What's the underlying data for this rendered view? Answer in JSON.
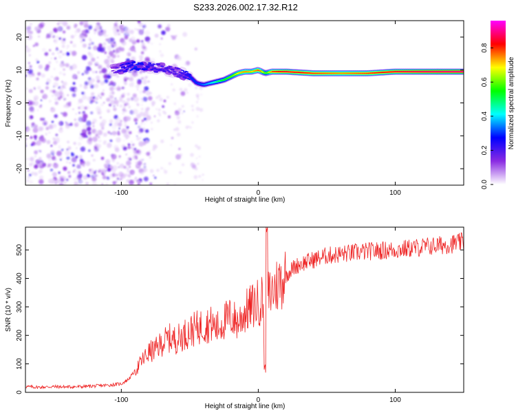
{
  "title": "S233.2026.002.17.32.R12",
  "chart_data": [
    {
      "type": "heatmap",
      "name": "spectrogram",
      "xlabel": "Height of straight line (km)",
      "ylabel": "Frequency (Hz)",
      "xlim": [
        -170,
        150
      ],
      "ylim": [
        -25,
        25
      ],
      "xticks": [
        -100,
        0,
        100
      ],
      "yticks": [
        -20,
        -10,
        0,
        10,
        20
      ],
      "grid": false,
      "colorbar": {
        "label": "Normalized spectral amplitude",
        "range": [
          0,
          0.96
        ],
        "ticks": [
          0.0,
          0.2,
          0.4,
          0.6,
          0.8
        ],
        "colors": [
          "#ffffff",
          "#8a2be2",
          "#0000ff",
          "#00ffff",
          "#00ff00",
          "#ffff00",
          "#ff0000",
          "#ff00ff"
        ]
      },
      "ridge": {
        "x": [
          -107,
          -100,
          -90,
          -80,
          -70,
          -60,
          -50,
          -45,
          -40,
          -35,
          -30,
          -25,
          -20,
          -15,
          -10,
          -5,
          0,
          5,
          10,
          20,
          40,
          60,
          80,
          100,
          120,
          150
        ],
        "frequency": [
          10,
          10.5,
          11.5,
          11,
          10.5,
          9.5,
          8,
          6,
          5.5,
          6,
          6.5,
          7,
          8,
          9,
          9.5,
          9.5,
          10,
          9,
          9.5,
          9.5,
          9,
          9,
          9,
          9.5,
          9.5,
          9.5
        ],
        "amplitude": [
          0.15,
          0.25,
          0.3,
          0.25,
          0.22,
          0.2,
          0.3,
          0.3,
          0.35,
          0.4,
          0.5,
          0.55,
          0.6,
          0.7,
          0.75,
          0.7,
          0.8,
          0.55,
          0.8,
          0.85,
          0.8,
          0.75,
          0.8,
          0.85,
          0.88,
          0.9
        ]
      }
    },
    {
      "type": "line",
      "name": "snr",
      "xlabel": "Height of straight line (km)",
      "ylabel": "SNR (10 * v/v)",
      "xlim": [
        -170,
        150
      ],
      "ylim": [
        0,
        580
      ],
      "xticks": [
        -100,
        0,
        100
      ],
      "yticks": [
        0,
        100,
        200,
        300,
        400,
        500
      ],
      "grid": false,
      "color": "#ee2222",
      "series": [
        {
          "x": [
            -170,
            -160,
            -150,
            -140,
            -130,
            -120,
            -110,
            -100,
            -95,
            -90,
            -85,
            -80,
            -75,
            -70,
            -65,
            -60,
            -55,
            -50,
            -45,
            -40,
            -35,
            -30,
            -25,
            -20,
            -15,
            -10,
            -5,
            0,
            3,
            5,
            7,
            10,
            15,
            20,
            25,
            30,
            40,
            50,
            60,
            70,
            80,
            90,
            100,
            110,
            120,
            130,
            140,
            150
          ],
          "values": [
            20,
            18,
            20,
            19,
            20,
            22,
            25,
            30,
            45,
            75,
            110,
            140,
            150,
            175,
            190,
            185,
            200,
            215,
            225,
            235,
            240,
            225,
            250,
            265,
            245,
            280,
            300,
            315,
            330,
            240,
            340,
            355,
            385,
            410,
            435,
            450,
            465,
            480,
            485,
            490,
            495,
            498,
            500,
            505,
            510,
            515,
            520,
            528
          ]
        }
      ]
    }
  ]
}
